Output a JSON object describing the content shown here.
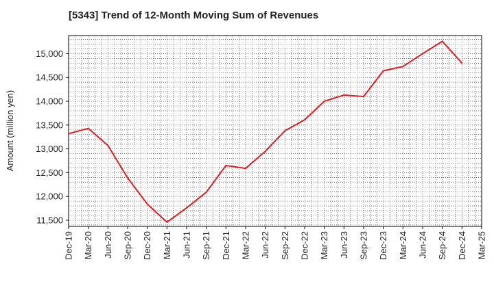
{
  "chart_data": {
    "type": "line",
    "title": "[5343]  Trend of 12-Month Moving Sum of Revenues",
    "ylabel": "Amount (million yen)",
    "xlabel": "",
    "x_tick_labels": [
      "Dec-19",
      "Mar-20",
      "Jun-20",
      "Sep-20",
      "Dec-20",
      "Mar-21",
      "Jun-21",
      "Sep-21",
      "Dec-21",
      "Mar-22",
      "Jun-22",
      "Sep-22",
      "Dec-22",
      "Mar-23",
      "Jun-23",
      "Sep-23",
      "Dec-23",
      "Mar-24",
      "Jun-24",
      "Sep-24",
      "Dec-24",
      "Mar-25"
    ],
    "y_ticks": [
      11500,
      12000,
      12500,
      13000,
      13500,
      14000,
      14500,
      15000
    ],
    "y_tick_labels": [
      "11,500",
      "12,000",
      "12,500",
      "13,000",
      "13,500",
      "14,000",
      "14,500",
      "15,000"
    ],
    "ylim": [
      11370,
      15380
    ],
    "grid": true,
    "series": [
      {
        "color": "#e31a1c",
        "x": [
          "Dec-19",
          "Mar-20",
          "Jun-20",
          "Sep-20",
          "Dec-20",
          "Mar-21",
          "Jun-21",
          "Sep-21",
          "Dec-21",
          "Mar-22",
          "Jun-22",
          "Sep-22",
          "Dec-22",
          "Mar-23",
          "Jun-23",
          "Sep-23",
          "Dec-23",
          "Mar-24",
          "Jun-24",
          "Sep-24",
          "Dec-24"
        ],
        "values": [
          13320,
          13430,
          13070,
          12390,
          11840,
          11460,
          11760,
          12090,
          12650,
          12590,
          12950,
          13380,
          13610,
          14000,
          14130,
          14100,
          14640,
          14730,
          15000,
          15260,
          14800
        ]
      }
    ]
  }
}
